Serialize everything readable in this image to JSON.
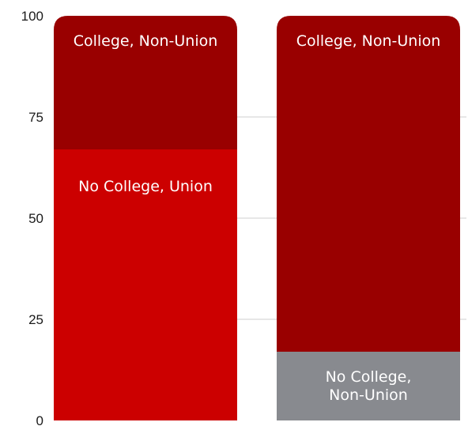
{
  "chart_data": {
    "type": "bar",
    "stacked": true,
    "title": "",
    "xlabel": "",
    "ylabel": "",
    "ylim": [
      0,
      100
    ],
    "yticks": [
      0,
      25,
      50,
      75,
      100
    ],
    "grid": true,
    "bars": [
      {
        "segments": [
          {
            "label": "No College, Union",
            "value": 67,
            "color": "#cc0000"
          },
          {
            "label": "College, Non-Union",
            "value": 33,
            "color": "#990000"
          }
        ]
      },
      {
        "segments": [
          {
            "label": "No College, Non-Union",
            "value": 17,
            "color": "#888a8f"
          },
          {
            "label": "College, Non-Union",
            "value": 83,
            "color": "#990000"
          }
        ]
      }
    ]
  }
}
